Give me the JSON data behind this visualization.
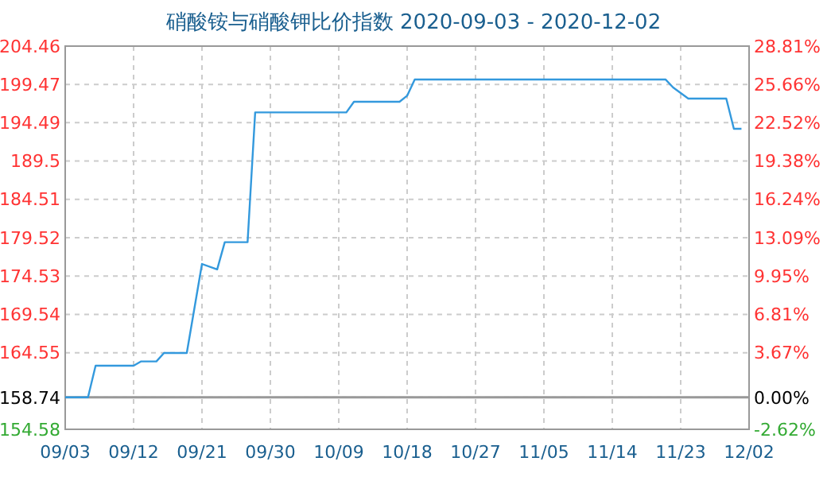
{
  "chart_data": {
    "type": "line",
    "title": "硝酸铵与硝酸钾比价指数 2020-09-03 - 2020-12-02",
    "series": [
      {
        "color": "#3399dd",
        "x": [
          "2020-09-03",
          "2020-09-06",
          "2020-09-07",
          "2020-09-12",
          "2020-09-13",
          "2020-09-15",
          "2020-09-16",
          "2020-09-19",
          "2020-09-21",
          "2020-09-23",
          "2020-09-24",
          "2020-09-27",
          "2020-09-28",
          "2020-10-10",
          "2020-10-11",
          "2020-10-17",
          "2020-10-18",
          "2020-10-19",
          "2020-11-21",
          "2020-11-22",
          "2020-11-24",
          "2020-11-29",
          "2020-11-30",
          "2020-12-01"
        ],
        "values": [
          158.74,
          158.74,
          162.86,
          162.86,
          163.42,
          163.42,
          164.52,
          164.52,
          176.1,
          175.4,
          178.94,
          178.94,
          195.83,
          195.83,
          197.22,
          197.22,
          198.0,
          200.12,
          200.12,
          199.08,
          197.63,
          197.63,
          193.7,
          193.7
        ]
      }
    ],
    "xlim": [
      "2020-09-03",
      "2020-12-02"
    ],
    "xticks": [
      {
        "value": "2020-09-03",
        "label": "09/03"
      },
      {
        "value": "2020-09-12",
        "label": "09/12"
      },
      {
        "value": "2020-09-21",
        "label": "09/21"
      },
      {
        "value": "2020-09-30",
        "label": "09/30"
      },
      {
        "value": "2020-10-09",
        "label": "10/09"
      },
      {
        "value": "2020-10-18",
        "label": "10/18"
      },
      {
        "value": "2020-10-27",
        "label": "10/27"
      },
      {
        "value": "2020-11-05",
        "label": "11/05"
      },
      {
        "value": "2020-11-14",
        "label": "11/14"
      },
      {
        "value": "2020-11-23",
        "label": "11/23"
      },
      {
        "value": "2020-12-02",
        "label": "12/02"
      }
    ],
    "ylim": [
      154.58,
      204.46
    ],
    "yticks": [
      154.58,
      158.74,
      164.55,
      169.54,
      174.53,
      179.52,
      184.51,
      189.5,
      194.49,
      199.47,
      204.46
    ],
    "y2lim": [
      -2.62,
      28.81
    ],
    "y2ticks": [
      {
        "value": -2.62,
        "label": "-2.62%"
      },
      {
        "value": 0,
        "label": "0.00%"
      },
      {
        "value": 3.67,
        "label": "3.67%"
      },
      {
        "value": 6.81,
        "label": "6.81%"
      },
      {
        "value": 9.95,
        "label": "9.95%"
      },
      {
        "value": 13.09,
        "label": "13.09%"
      },
      {
        "value": 16.24,
        "label": "16.24%"
      },
      {
        "value": 19.38,
        "label": "19.38%"
      },
      {
        "value": 22.52,
        "label": "22.52%"
      },
      {
        "value": 25.66,
        "label": "25.66%"
      },
      {
        "value": 28.81,
        "label": "28.81%"
      }
    ],
    "ref_lines": [
      {
        "axis": "y",
        "value": 158.74,
        "color": "#999999"
      }
    ],
    "grid": true
  }
}
